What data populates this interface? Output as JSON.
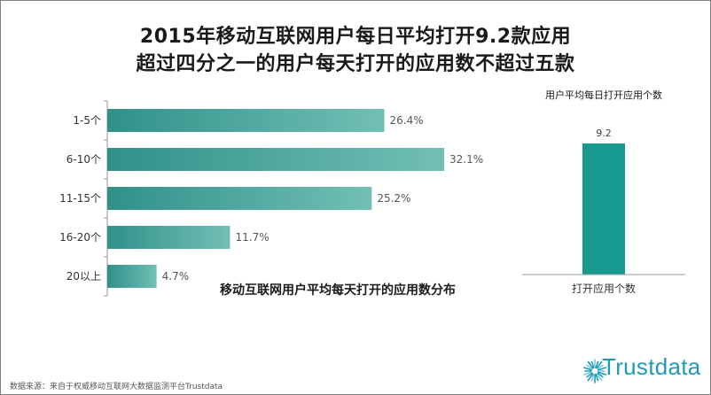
{
  "titles": {
    "line1": "2015年移动互联网用户每日平均打开9.2款应用",
    "line2": "超过四分之一的用户每天打开的应用数不超过五款"
  },
  "source_text": "数据来源：来自于权威移动互联网大数据监测平台Trustdata",
  "logo_text": "Trustdata",
  "colors": {
    "bar_dark": "#2f9189",
    "bar_light": "#72bfb5",
    "right_bar": "#17998f",
    "axis": "#999999"
  },
  "chart_data": [
    {
      "type": "bar",
      "orientation": "horizontal",
      "title": "移动互联网用户平均每天打开的应用数分布",
      "categories": [
        "1-5个",
        "6-10个",
        "11-15个",
        "16-20个",
        "20以上"
      ],
      "values": [
        26.4,
        32.1,
        25.2,
        11.7,
        4.7
      ],
      "value_labels": [
        "26.4%",
        "32.1%",
        "25.2%",
        "11.7%",
        "4.7%"
      ],
      "xlim": [
        0,
        32.1
      ],
      "grid": false,
      "legend": "none"
    },
    {
      "type": "bar",
      "title": "用户平均每日打开应用个数",
      "categories": [
        "打开应用个数"
      ],
      "values": [
        9.2
      ],
      "value_labels": [
        "9.2"
      ],
      "ylim": [
        0,
        9.2
      ],
      "grid": false,
      "legend": "none"
    }
  ]
}
